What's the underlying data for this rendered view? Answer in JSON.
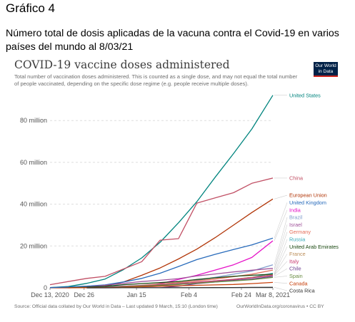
{
  "doc": {
    "heading": "Gráfico 4",
    "subtitle": "Número total de dosis aplicadas de la vacuna contra el Covid-19 en varios países del mundo al 8/03/21"
  },
  "logo": {
    "line1": "Our World",
    "line2": "in Data"
  },
  "chart_data": {
    "type": "line",
    "title": "COVID-19 vaccine doses administered",
    "subtitle": "Total number of vaccination doses administered. This is counted as a single dose, and may not equal the total number of people vaccinated, depending on the specific dose regime (e.g. people receive multiple doses).",
    "source": "Source: Official data collated by Our World in Data – Last updated 9 March, 15:10 (London time)",
    "license": "OurWorldInData.org/coronavirus • CC BY",
    "xlabel": "",
    "ylabel": "",
    "x_ticks": [
      "Dec 13, 2020",
      "Dec 26",
      "Jan 15",
      "Feb 4",
      "Feb 24",
      "Mar 8, 2021"
    ],
    "y_ticks": [
      "0",
      "20 million",
      "40 million",
      "60 million",
      "80 million"
    ],
    "y_tick_values": [
      0,
      20,
      40,
      60,
      80
    ],
    "ylim": [
      0,
      92
    ],
    "x_start": "2020-12-13",
    "x_end": "2021-03-08",
    "grid": "horizontal dashed",
    "x": [
      "2020-12-13",
      "2020-12-20",
      "2020-12-27",
      "2021-01-03",
      "2021-01-10",
      "2021-01-17",
      "2021-01-24",
      "2021-01-31",
      "2021-02-07",
      "2021-02-14",
      "2021-02-21",
      "2021-02-28",
      "2021-03-08"
    ],
    "units": "million doses",
    "series": [
      {
        "name": "United States",
        "color": "#00847e",
        "values": [
          0.1,
          0.6,
          2.1,
          4.2,
          8.7,
          14.3,
          21.8,
          31.1,
          41.2,
          52.9,
          64.2,
          76.0,
          92.1
        ]
      },
      {
        "name": "China",
        "color": "#c15065",
        "values": [
          1.5,
          3.0,
          4.5,
          5.5,
          9.0,
          12.5,
          22.8,
          23.5,
          40.5,
          43.0,
          45.5,
          50.0,
          52.5
        ]
      },
      {
        "name": "European Union",
        "color": "#b13507",
        "values": [
          0.0,
          0.0,
          0.2,
          0.8,
          2.8,
          6.0,
          9.5,
          13.8,
          18.5,
          24.0,
          30.0,
          36.0,
          42.5
        ]
      },
      {
        "name": "United Kingdom",
        "color": "#286bbb",
        "values": [
          0.1,
          0.4,
          0.8,
          1.4,
          2.8,
          4.5,
          7.0,
          10.2,
          13.5,
          16.0,
          18.3,
          20.5,
          23.8
        ]
      },
      {
        "name": "India",
        "color": "#e511c7",
        "values": [
          null,
          null,
          null,
          null,
          null,
          0.5,
          2.0,
          4.0,
          6.0,
          8.5,
          11.0,
          14.5,
          22.5
        ]
      },
      {
        "name": "Brazil",
        "color": "#7d9bcb",
        "values": [
          null,
          null,
          null,
          null,
          null,
          0.3,
          0.8,
          2.0,
          3.5,
          5.0,
          6.5,
          8.0,
          11.0
        ]
      },
      {
        "name": "Israel",
        "color": "#a2559c",
        "values": [
          null,
          0.05,
          0.4,
          1.2,
          2.1,
          3.0,
          3.6,
          4.4,
          5.7,
          6.6,
          7.6,
          8.4,
          9.3
        ]
      },
      {
        "name": "Germany",
        "color": "#e56e5a",
        "values": [
          null,
          0.0,
          0.1,
          0.3,
          0.7,
          1.2,
          1.8,
          2.5,
          3.3,
          4.2,
          5.3,
          6.5,
          8.5
        ]
      },
      {
        "name": "Russia",
        "color": "#38aaba",
        "values": [
          null,
          0.1,
          0.3,
          0.6,
          0.8,
          1.0,
          1.5,
          2.0,
          2.5,
          3.0,
          4.0,
          5.0,
          7.0
        ]
      },
      {
        "name": "United Arab Emirates",
        "color": "#18470f",
        "values": [
          null,
          0.05,
          0.3,
          0.7,
          1.5,
          2.0,
          2.5,
          3.0,
          4.0,
          4.8,
          5.5,
          6.0,
          6.5
        ]
      },
      {
        "name": "France",
        "color": "#bc8e5a",
        "values": [
          null,
          null,
          0.0,
          0.05,
          0.3,
          0.8,
          1.3,
          1.8,
          2.5,
          3.3,
          4.1,
          5.0,
          6.2
        ]
      },
      {
        "name": "Italy",
        "color": "#c73b71",
        "values": [
          null,
          null,
          0.05,
          0.2,
          0.7,
          1.1,
          1.4,
          1.9,
          2.7,
          3.3,
          4.0,
          4.8,
          6.0
        ]
      },
      {
        "name": "Chile",
        "color": "#6d3e91",
        "values": [
          null,
          null,
          0.0,
          0.01,
          0.02,
          0.03,
          0.05,
          0.8,
          2.0,
          2.8,
          3.5,
          4.2,
          5.5
        ]
      },
      {
        "name": "Spain",
        "color": "#6a8d44",
        "values": [
          null,
          null,
          0.0,
          0.1,
          0.5,
          0.9,
          1.2,
          1.6,
          2.2,
          2.8,
          3.3,
          3.9,
          5.0
        ]
      },
      {
        "name": "Canada",
        "color": "#c8410d",
        "values": [
          null,
          0.0,
          0.05,
          0.1,
          0.3,
          0.5,
          0.8,
          1.0,
          1.2,
          1.4,
          1.6,
          2.0,
          2.6
        ]
      },
      {
        "name": "Costa Rica",
        "color": "#333333",
        "values": [
          null,
          null,
          0.0,
          0.01,
          0.02,
          0.03,
          0.04,
          0.06,
          0.08,
          0.1,
          0.15,
          0.2,
          0.25
        ]
      }
    ]
  }
}
